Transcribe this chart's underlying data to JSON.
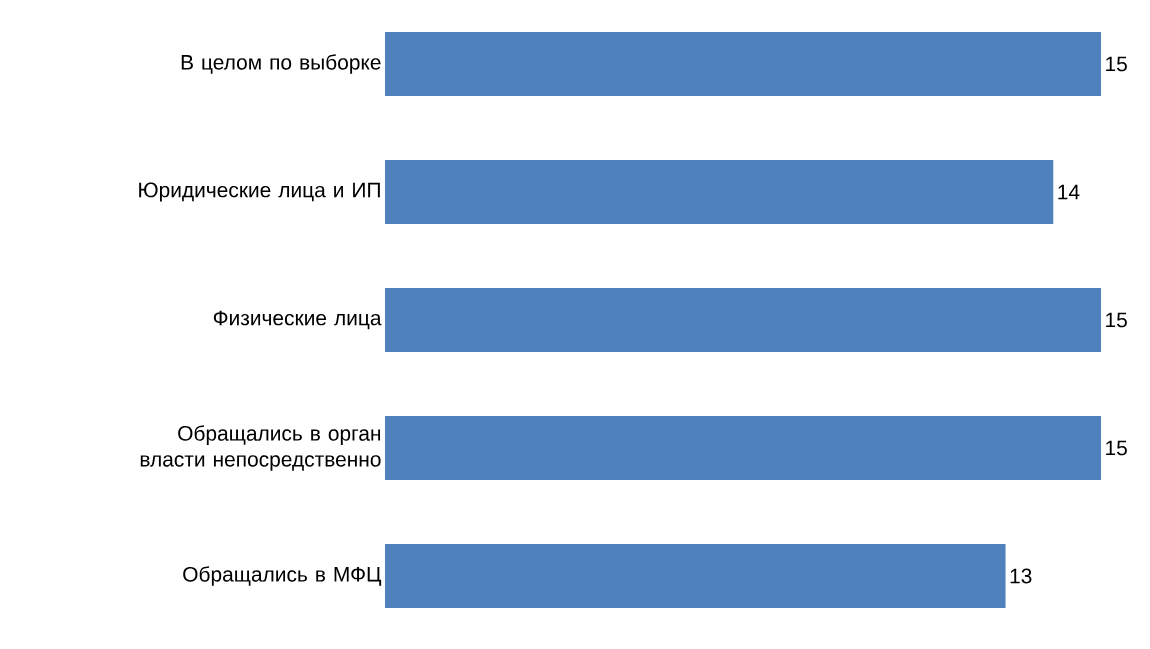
{
  "chart_data": {
    "type": "bar",
    "orientation": "horizontal",
    "categories": [
      "В целом по выборке",
      "Юридические лица и ИП",
      "Физические лица",
      "Обращались в орган власти непосредственно",
      "Обращались в МФЦ"
    ],
    "values": [
      15,
      14,
      15,
      15,
      13
    ],
    "color": "#4f81bd",
    "xlim": [
      0,
      15
    ],
    "data_labels": true
  }
}
